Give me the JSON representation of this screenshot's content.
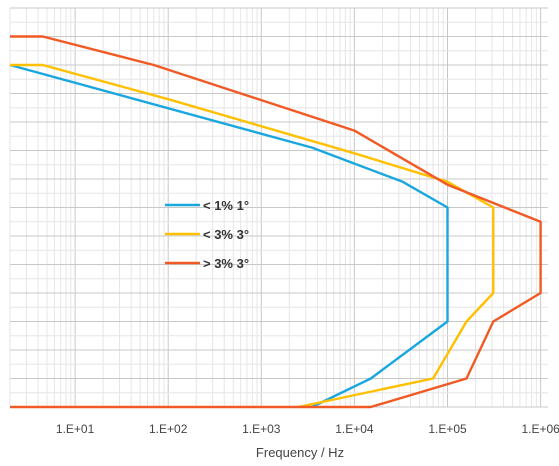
{
  "chart_data": {
    "type": "line",
    "xscale": "log",
    "xlim": [
      2.0,
      1200000
    ],
    "ylim": [
      0,
      14
    ],
    "grid": true,
    "legend_position": "center-left",
    "xlabel": "Frequency / Hz",
    "ylabel": "",
    "title": "",
    "x_ticks": [
      {
        "value": 10,
        "label": "1.E+01"
      },
      {
        "value": 100,
        "label": "1.E+02"
      },
      {
        "value": 1000,
        "label": "1.E+03"
      },
      {
        "value": 10000,
        "label": "1.E+04"
      },
      {
        "value": 100000,
        "label": "1.E+05"
      },
      {
        "value": 1000000,
        "label": "1.E+06"
      }
    ],
    "series": [
      {
        "name": "< 1% 1°",
        "color": "#1aa7e0",
        "points": [
          [
            2,
            12
          ],
          [
            3500,
            9.1
          ],
          [
            33000,
            7.9
          ],
          [
            100000,
            7.0
          ],
          [
            100000,
            3.0
          ],
          [
            15000,
            1.0
          ],
          [
            3500,
            0
          ]
        ]
      },
      {
        "name": "< 3% 3°",
        "color": "#ffc000",
        "points": [
          [
            2,
            12
          ],
          [
            4.5,
            12
          ],
          [
            100,
            10.8
          ],
          [
            10000,
            8.9
          ],
          [
            100000,
            7.9
          ],
          [
            310000,
            7.0
          ],
          [
            310000,
            4.0
          ],
          [
            160000,
            3.0
          ],
          [
            70000,
            1.0
          ],
          [
            2500,
            0
          ]
        ]
      },
      {
        "name": "> 3% 3°",
        "color": "#f15a24",
        "points": [
          [
            2,
            13
          ],
          [
            4.5,
            13
          ],
          [
            70,
            12
          ],
          [
            10000,
            9.7
          ],
          [
            100000,
            7.8
          ],
          [
            1000000,
            6.5
          ],
          [
            1000000,
            4.0
          ],
          [
            310000,
            3.0
          ],
          [
            160000,
            1.0
          ],
          [
            15000,
            0
          ],
          [
            2,
            0
          ]
        ]
      }
    ]
  }
}
